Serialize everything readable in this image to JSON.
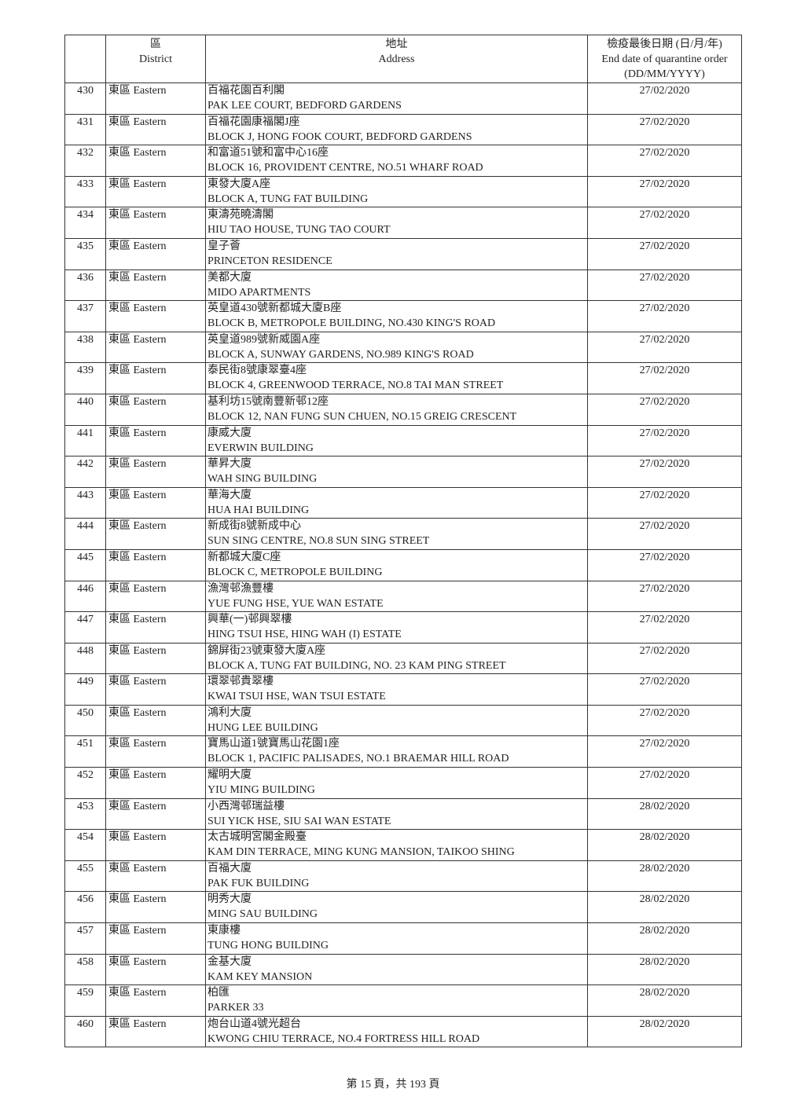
{
  "header": {
    "district_zh": "區",
    "district_en": "District",
    "address_zh": "地址",
    "address_en": "Address",
    "date_zh": "檢疫最後日期 (日/月/年)",
    "date_en": "End date of quarantine order",
    "date_fmt": "(DD/MM/YYYY)"
  },
  "rows": [
    {
      "no": "430",
      "district": "東區 Eastern",
      "zh": "百福花園百利閣",
      "en": "PAK LEE COURT, BEDFORD GARDENS",
      "date": "27/02/2020"
    },
    {
      "no": "431",
      "district": "東區 Eastern",
      "zh": "百福花園康福閣J座",
      "en": "BLOCK J, HONG FOOK COURT, BEDFORD GARDENS",
      "date": "27/02/2020"
    },
    {
      "no": "432",
      "district": "東區 Eastern",
      "zh": "和富道51號和富中心16座",
      "en": "BLOCK 16, PROVIDENT CENTRE, NO.51 WHARF ROAD",
      "date": "27/02/2020"
    },
    {
      "no": "433",
      "district": "東區 Eastern",
      "zh": "東發大廈A座",
      "en": "BLOCK A, TUNG FAT BUILDING",
      "date": "27/02/2020"
    },
    {
      "no": "434",
      "district": "東區 Eastern",
      "zh": "東濤苑曉濤閣",
      "en": "HIU TAO HOUSE, TUNG TAO COURT",
      "date": "27/02/2020"
    },
    {
      "no": "435",
      "district": "東區 Eastern",
      "zh": "皇子薈",
      "en": "PRINCETON RESIDENCE",
      "date": "27/02/2020"
    },
    {
      "no": "436",
      "district": "東區 Eastern",
      "zh": "美都大廈",
      "en": "MIDO APARTMENTS",
      "date": "27/02/2020"
    },
    {
      "no": "437",
      "district": "東區 Eastern",
      "zh": "英皇道430號新都城大廈B座",
      "en": "BLOCK B, METROPOLE BUILDING, NO.430 KING'S ROAD",
      "date": "27/02/2020"
    },
    {
      "no": "438",
      "district": "東區 Eastern",
      "zh": "英皇道989號新威園A座",
      "en": "BLOCK A, SUNWAY GARDENS, NO.989 KING'S ROAD",
      "date": "27/02/2020"
    },
    {
      "no": "439",
      "district": "東區 Eastern",
      "zh": "泰民街8號康翠臺4座",
      "en": "BLOCK 4, GREENWOOD TERRACE, NO.8 TAI MAN STREET",
      "date": "27/02/2020"
    },
    {
      "no": "440",
      "district": "東區 Eastern",
      "zh": "基利坊15號南豐新邨12座",
      "en": "BLOCK 12, NAN FUNG SUN CHUEN, NO.15 GREIG CRESCENT",
      "date": "27/02/2020"
    },
    {
      "no": "441",
      "district": "東區 Eastern",
      "zh": "康威大廈",
      "en": "EVERWIN BUILDING",
      "date": "27/02/2020"
    },
    {
      "no": "442",
      "district": "東區 Eastern",
      "zh": "華昇大廈",
      "en": "WAH SING BUILDING",
      "date": "27/02/2020"
    },
    {
      "no": "443",
      "district": "東區 Eastern",
      "zh": "華海大廈",
      "en": "HUA HAI BUILDING",
      "date": "27/02/2020"
    },
    {
      "no": "444",
      "district": "東區 Eastern",
      "zh": "新成街8號新成中心",
      "en": "SUN SING CENTRE, NO.8 SUN SING STREET",
      "date": "27/02/2020"
    },
    {
      "no": "445",
      "district": "東區 Eastern",
      "zh": "新都城大廈C座",
      "en": "BLOCK C, METROPOLE BUILDING",
      "date": "27/02/2020"
    },
    {
      "no": "446",
      "district": "東區 Eastern",
      "zh": "漁灣邨漁豐樓",
      "en": "YUE FUNG HSE, YUE WAN ESTATE",
      "date": "27/02/2020"
    },
    {
      "no": "447",
      "district": "東區 Eastern",
      "zh": "興華(一)邨興翠樓",
      "en": "HING TSUI HSE, HING WAH (I) ESTATE",
      "date": "27/02/2020"
    },
    {
      "no": "448",
      "district": "東區 Eastern",
      "zh": "錦屏街23號東發大廈A座",
      "en": "BLOCK A, TUNG FAT BUILDING, NO. 23 KAM PING STREET",
      "date": "27/02/2020"
    },
    {
      "no": "449",
      "district": "東區 Eastern",
      "zh": "環翠邨貴翠樓",
      "en": "KWAI TSUI HSE, WAN TSUI ESTATE",
      "date": "27/02/2020"
    },
    {
      "no": "450",
      "district": "東區 Eastern",
      "zh": "鴻利大廈",
      "en": "HUNG LEE BUILDING",
      "date": "27/02/2020"
    },
    {
      "no": "451",
      "district": "東區 Eastern",
      "zh": "寶馬山道1號寶馬山花園1座",
      "en": "BLOCK 1, PACIFIC PALISADES, NO.1 BRAEMAR HILL ROAD",
      "date": "27/02/2020"
    },
    {
      "no": "452",
      "district": "東區 Eastern",
      "zh": "耀明大廈",
      "en": "YIU MING BUILDING",
      "date": "27/02/2020"
    },
    {
      "no": "453",
      "district": "東區 Eastern",
      "zh": "小西灣邨瑞益樓",
      "en": "SUI YICK HSE, SIU SAI WAN ESTATE",
      "date": "28/02/2020"
    },
    {
      "no": "454",
      "district": "東區 Eastern",
      "zh": "太古城明宮閣金殿臺",
      "en": "KAM DIN TERRACE, MING KUNG MANSION, TAIKOO SHING",
      "date": "28/02/2020"
    },
    {
      "no": "455",
      "district": "東區 Eastern",
      "zh": "百福大廈",
      "en": "PAK FUK BUILDING",
      "date": "28/02/2020"
    },
    {
      "no": "456",
      "district": "東區 Eastern",
      "zh": "明秀大廈",
      "en": "MING SAU BUILDING",
      "date": "28/02/2020"
    },
    {
      "no": "457",
      "district": "東區 Eastern",
      "zh": "東康樓",
      "en": "TUNG HONG BUILDING",
      "date": "28/02/2020"
    },
    {
      "no": "458",
      "district": "東區 Eastern",
      "zh": "金基大廈",
      "en": "KAM KEY MANSION",
      "date": "28/02/2020"
    },
    {
      "no": "459",
      "district": "東區 Eastern",
      "zh": "柏匯",
      "en": "PARKER 33",
      "date": "28/02/2020"
    },
    {
      "no": "460",
      "district": "東區 Eastern",
      "zh": "炮台山道4號光超台",
      "en": "KWONG CHIU TERRACE, NO.4 FORTRESS HILL ROAD",
      "date": "28/02/2020"
    }
  ],
  "footer": {
    "page_label": "第 15 頁，共 193 頁"
  }
}
